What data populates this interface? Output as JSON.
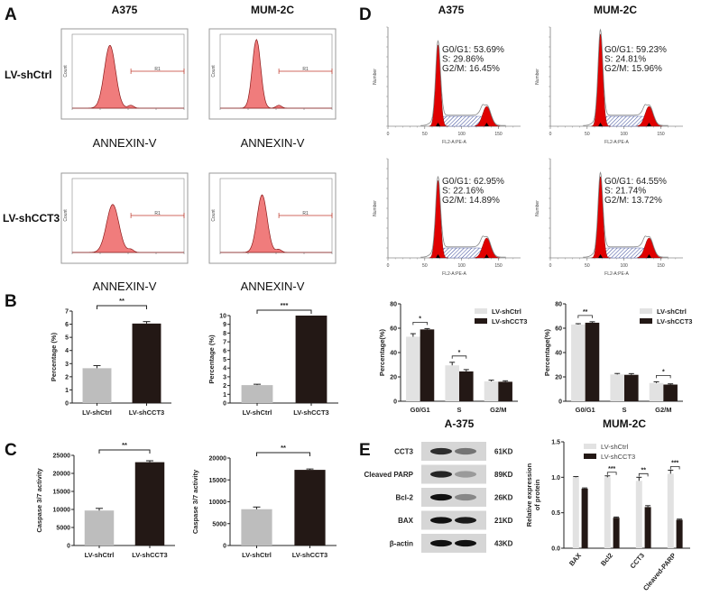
{
  "panels": {
    "A": {
      "label": "A",
      "columns": [
        "A375",
        "MUM-2C"
      ],
      "rows": [
        "LV-shCtrl",
        "LV-shCCT3"
      ],
      "xlabel": "ANNEXIN-V",
      "gate_label": "R1",
      "count_label": "Count"
    },
    "B": {
      "label": "B"
    },
    "C": {
      "label": "C"
    },
    "D": {
      "label": "D",
      "columns": [
        "A375",
        "MUM-2C"
      ],
      "xlabel": "FL2-A:PE-A",
      "ylabel": "Number",
      "xticks": [
        "0",
        "50",
        "100",
        "150"
      ],
      "stats": [
        [
          "G0/G1: 53.69%",
          "S: 29.86%",
          "G2/M: 16.45%"
        ],
        [
          "G0/G1: 59.23%",
          "S: 24.81%",
          "G2/M: 15.96%"
        ],
        [
          "G0/G1: 62.95%",
          "S: 22.16%",
          "G2/M: 14.89%"
        ],
        [
          "G0/G1: 64.55%",
          "S: 21.74%",
          "G2/M: 13.72%"
        ]
      ]
    },
    "E": {
      "label": "E",
      "blot_rows": [
        {
          "protein": "CCT3",
          "size": "61KD"
        },
        {
          "protein": "Cleaved PARP",
          "size": "89KD"
        },
        {
          "protein": "Bcl-2",
          "size": "26KD"
        },
        {
          "protein": "BAX",
          "size": "21KD"
        },
        {
          "protein": "β-actin",
          "size": "43KD"
        }
      ]
    }
  },
  "colors": {
    "ctrl": "#bdbdbd",
    "ctrl_light": "#e2e2e2",
    "cct3": "#231815",
    "flow_fill": "#f07c7c",
    "cycle_red": "#e00000"
  },
  "chart_data": [
    {
      "id": "B1",
      "type": "bar",
      "categories": [
        "LV-shCtrl",
        "LV-shCCT3"
      ],
      "values": [
        2.65,
        6.05
      ],
      "errors": [
        0.2,
        0.15
      ],
      "ylabel": "Percentage (%)",
      "ylim": [
        0,
        7
      ],
      "yticks": [
        0,
        1,
        2,
        3,
        4,
        5,
        6,
        7
      ],
      "significance": [
        {
          "between": [
            0,
            1
          ],
          "label": "**"
        }
      ]
    },
    {
      "id": "B2",
      "type": "bar",
      "categories": [
        "LV-shCtrl",
        "LV-shCCT3"
      ],
      "values": [
        2.05,
        10
      ],
      "errors": [
        0.1,
        0
      ],
      "ylabel": "Percentage (%)",
      "ylim": [
        0,
        10
      ],
      "yticks": [
        0,
        1,
        2,
        3,
        4,
        5,
        6,
        7,
        8,
        9,
        10
      ],
      "significance": [
        {
          "between": [
            0,
            1
          ],
          "label": "***"
        }
      ]
    },
    {
      "id": "C1",
      "type": "bar",
      "categories": [
        "LV-shCtrl",
        "LV-shCCT3"
      ],
      "values": [
        9700,
        23100
      ],
      "errors": [
        600,
        400
      ],
      "ylabel": "Caspase 3/7 activity",
      "ylim": [
        0,
        25000
      ],
      "yticks": [
        0,
        5000,
        10000,
        15000,
        20000,
        25000
      ],
      "significance": [
        {
          "between": [
            0,
            1
          ],
          "label": "**"
        }
      ]
    },
    {
      "id": "C2",
      "type": "bar",
      "categories": [
        "LV-shCtrl",
        "LV-shCCT3"
      ],
      "values": [
        8300,
        17300
      ],
      "errors": [
        500,
        200
      ],
      "ylabel": "Caspase 3/7 activity",
      "ylim": [
        0,
        20000
      ],
      "yticks": [
        0,
        5000,
        10000,
        15000,
        20000
      ],
      "significance": [
        {
          "between": [
            0,
            1
          ],
          "label": "**"
        }
      ]
    },
    {
      "id": "D1",
      "type": "bar",
      "title": "A-375",
      "categories": [
        "G0/G1",
        "S",
        "G2/M"
      ],
      "series": [
        {
          "name": "LV-shCtrl",
          "values": [
            53,
            29.5,
            16.3
          ],
          "errors": [
            2.5,
            2.5,
            1
          ]
        },
        {
          "name": "LV-shCCT3",
          "values": [
            59,
            24.5,
            16
          ],
          "errors": [
            0.7,
            1.5,
            0.8
          ]
        }
      ],
      "ylabel": "Percentage(%)",
      "ylim": [
        0,
        80
      ],
      "yticks": [
        0,
        20,
        40,
        60,
        80
      ],
      "legend": "top-right",
      "significance": [
        {
          "category": 0,
          "label": "*"
        },
        {
          "category": 1,
          "label": "*"
        }
      ]
    },
    {
      "id": "D2",
      "type": "bar",
      "title": "MUM-2C",
      "categories": [
        "G0/G1",
        "S",
        "G2/M"
      ],
      "series": [
        {
          "name": "LV-shCtrl",
          "values": [
            63,
            22,
            15
          ],
          "errors": [
            0.7,
            0.8,
            1
          ]
        },
        {
          "name": "LV-shCCT3",
          "values": [
            64.5,
            21.7,
            13.7
          ],
          "errors": [
            0.8,
            1,
            0.6
          ]
        }
      ],
      "ylabel": "Percentage(%)",
      "ylim": [
        0,
        80
      ],
      "yticks": [
        0,
        20,
        40,
        60,
        80
      ],
      "legend": "top-right",
      "significance": [
        {
          "category": 0,
          "label": "**"
        },
        {
          "category": 2,
          "label": "*"
        }
      ]
    },
    {
      "id": "E1",
      "type": "bar",
      "categories": [
        "BAX",
        "Bcl2",
        "CCT3",
        "Cleaved-PARP"
      ],
      "series": [
        {
          "name": "LV-shCtrl",
          "values": [
            1.0,
            1.0,
            0.95,
            1.05
          ],
          "errors": [
            0.01,
            0.02,
            0.05,
            0.05
          ]
        },
        {
          "name": "LV-shCCT3",
          "values": [
            0.84,
            0.43,
            0.58,
            0.4
          ],
          "errors": [
            0.01,
            0.01,
            0.02,
            0.01
          ]
        }
      ],
      "ylabel": "Relative expression of protein",
      "ylim": [
        0,
        1.5
      ],
      "yticks": [
        0.0,
        0.5,
        1.0,
        1.5
      ],
      "legend": "top",
      "significance": [
        {
          "category": 1,
          "label": "***"
        },
        {
          "category": 2,
          "label": "**"
        },
        {
          "category": 3,
          "label": "***"
        }
      ]
    }
  ]
}
